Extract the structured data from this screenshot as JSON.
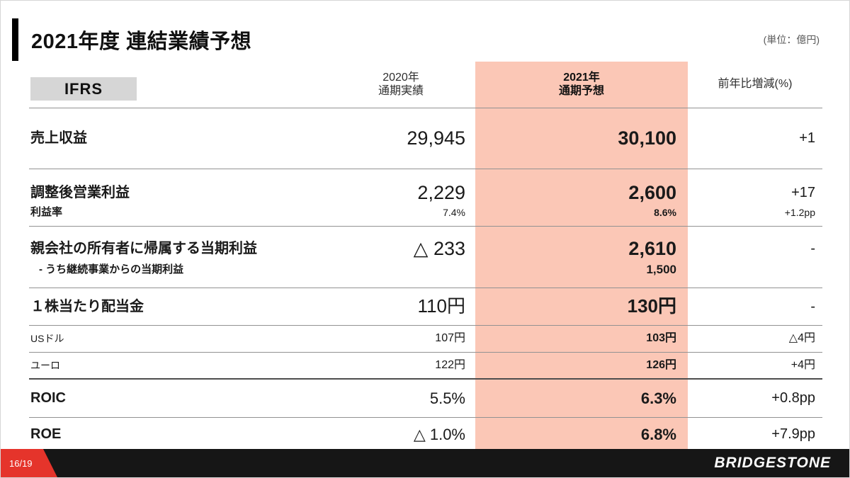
{
  "slide": {
    "title": "2021年度 連結業績予想",
    "unit_note": "(単位：億円)",
    "page_number": "16/19",
    "brand": "BRIDGESTONE"
  },
  "colors": {
    "highlight_pink": "#fbc7b6",
    "brand_red": "#e5342b",
    "footer_black": "#161616",
    "ifrs_gray": "#d6d6d6"
  },
  "table": {
    "ifrs_label": "IFRS",
    "columns": {
      "y2020": {
        "line1": "2020年",
        "line2": "通期実績"
      },
      "y2021": {
        "line1": "2021年",
        "line2": "通期予想"
      },
      "yoy": "前年比増減(%)"
    },
    "rows": [
      {
        "label": "売上収益",
        "v2020": "29,945",
        "v2021": "30,100",
        "yoy": "+1"
      },
      {
        "label": "調整後営業利益",
        "v2020": "2,229",
        "v2021": "2,600",
        "yoy": "+17",
        "sub": {
          "label": "利益率",
          "v2020": "7.4%",
          "v2021": "8.6%",
          "yoy": "+1.2pp"
        }
      },
      {
        "label": "親会社の所有者に帰属する当期利益",
        "v2020": "△ 233",
        "v2021": "2,610",
        "yoy": "-",
        "sub": {
          "label": "- うち継続事業からの当期利益",
          "v2020": "",
          "v2021": "1,500",
          "yoy": ""
        }
      },
      {
        "label": "１株当たり配当金",
        "v2020": "110円",
        "v2021": "130円",
        "yoy": "-"
      },
      {
        "label": "USドル",
        "v2020": "107円",
        "v2021": "103円",
        "yoy": "△4円"
      },
      {
        "label": "ユーロ",
        "v2020": "122円",
        "v2021": "126円",
        "yoy": "+4円"
      },
      {
        "label": "ROIC",
        "v2020": "5.5%",
        "v2021": "6.3%",
        "yoy": "+0.8pp"
      },
      {
        "label": "ROE",
        "v2020": "△ 1.0%",
        "v2021": "6.8%",
        "yoy": "+7.9pp"
      }
    ]
  }
}
